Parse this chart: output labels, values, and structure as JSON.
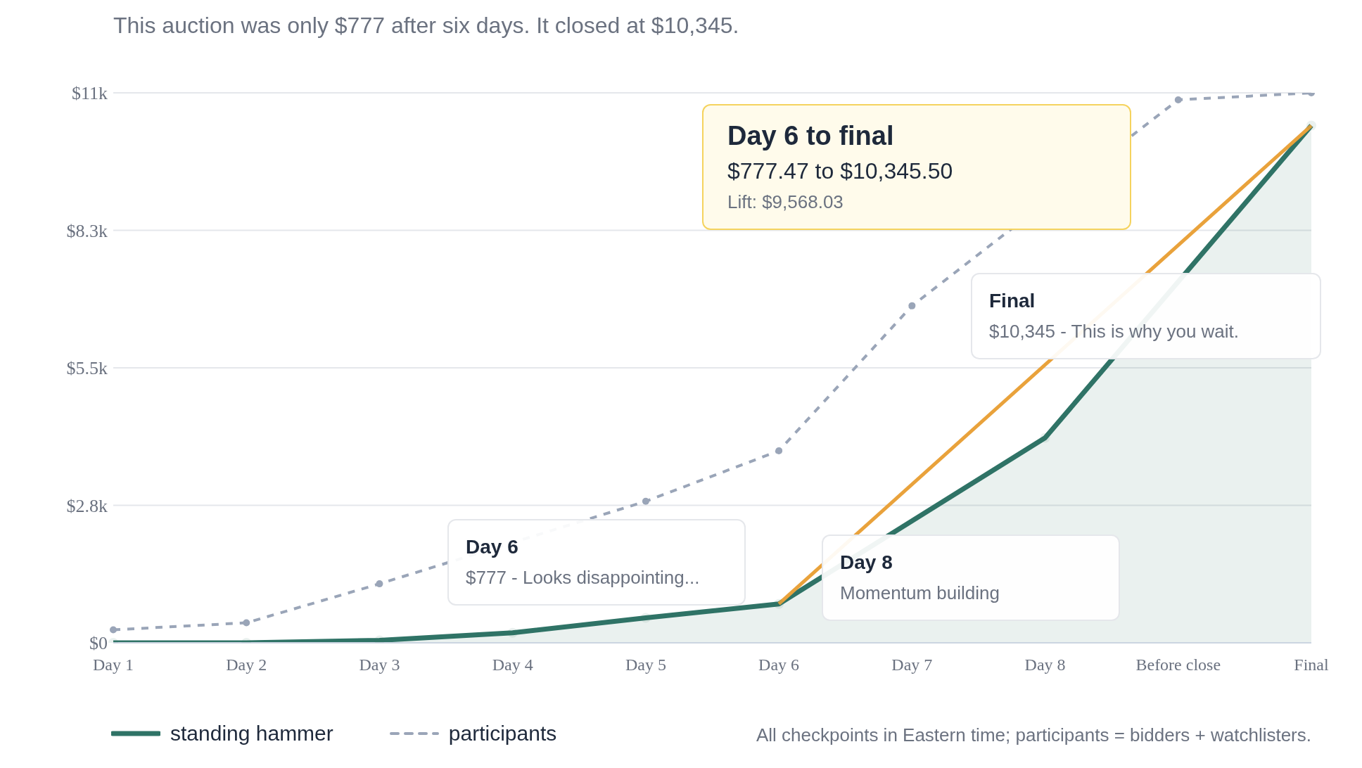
{
  "chart_data": {
    "type": "line",
    "title": "This auction was only $777 after six days. It closed at $10,345.",
    "categories": [
      "Day 1",
      "Day 2",
      "Day 3",
      "Day 4",
      "Day 5",
      "Day 6",
      "Day 7",
      "Day 8",
      "Before close",
      "Final"
    ],
    "series": [
      {
        "name": "standing hammer",
        "type": "area",
        "color": "#2f7366",
        "marker": "circle",
        "line_style": "solid",
        "values": [
          0,
          0,
          50,
          200,
          500,
          777.47,
          null,
          4100,
          null,
          10345.5
        ]
      },
      {
        "name": "participants",
        "color": "#9aa5b8",
        "marker": "circle",
        "line_style": "dashed",
        "values": [
          260,
          400,
          1180,
          null,
          2830,
          3840,
          6740,
          null,
          10860,
          11000
        ]
      },
      {
        "color": "#e9a23b",
        "marker": "none",
        "line_style": "solid",
        "values": [
          null,
          null,
          null,
          null,
          null,
          777.47,
          null,
          null,
          null,
          10345.5
        ]
      }
    ],
    "ylim": [
      0,
      11000
    ],
    "yticks": [
      {
        "value": 0,
        "label": "$0"
      },
      {
        "value": 2750,
        "label": "$2.8k"
      },
      {
        "value": 5500,
        "label": "$5.5k"
      },
      {
        "value": 8250,
        "label": "$8.3k"
      },
      {
        "value": 11000,
        "label": "$11k"
      }
    ],
    "grid": "y",
    "legend": "bottom left",
    "annotations": [
      {
        "text": "Day 6 to final\n$777.47 to $10,345.50\nLift: $9,568.03"
      },
      {
        "text": "Final\n$10,345 - This is why you wait."
      },
      {
        "text": "Day 6\n$777 - Looks disappointing..."
      },
      {
        "text": "Day 8\nMomentum building"
      },
      "All checkpoints in Eastern time; participants = bidders + watchlisters."
    ]
  }
}
